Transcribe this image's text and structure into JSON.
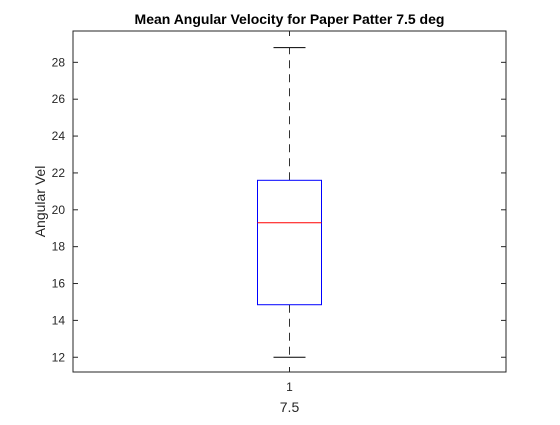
{
  "chart_data": {
    "type": "box",
    "title": "Mean Angular Velocity for Paper Patter 7.5 deg",
    "xlabel": "7.5",
    "ylabel": "Angular Vel",
    "categories": [
      "1"
    ],
    "ylim": [
      11.2,
      29.7
    ],
    "yticks": [
      12,
      14,
      16,
      18,
      20,
      22,
      24,
      26,
      28
    ],
    "series": [
      {
        "whisker_low": 12.0,
        "q1": 14.85,
        "median": 19.3,
        "q3": 21.6,
        "whisker_high": 28.8
      }
    ],
    "colors": {
      "box": "#0000ff",
      "median": "#ff0000",
      "whisker": "#000000",
      "axis": "#262626"
    }
  }
}
